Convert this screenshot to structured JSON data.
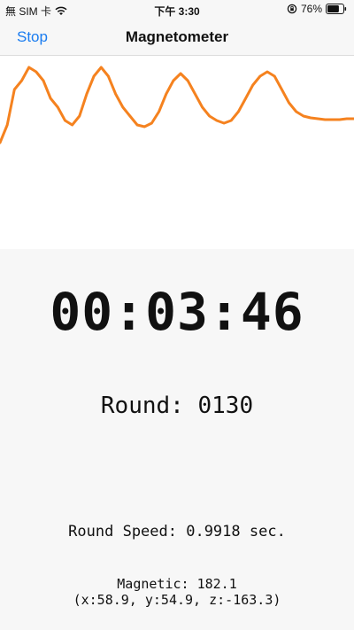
{
  "status_bar": {
    "carrier": "無 SIM 卡",
    "time": "下午 3:30",
    "battery_percent": "76%",
    "battery_level": 0.76
  },
  "nav": {
    "stop_label": "Stop",
    "title": "Magnetometer"
  },
  "chart_data": {
    "type": "line",
    "color": "#f5821f",
    "title": "",
    "xlabel": "",
    "ylabel": "",
    "grid": false,
    "ylim": [
      0,
      218
    ],
    "series": [
      {
        "values": [
          120,
          140,
          180,
          190,
          205,
          200,
          190,
          170,
          160,
          145,
          140,
          150,
          175,
          195,
          205,
          195,
          175,
          160,
          150,
          140,
          138,
          142,
          155,
          175,
          190,
          198,
          190,
          175,
          160,
          150,
          145,
          142,
          145,
          155,
          170,
          185,
          195,
          200,
          195,
          180,
          165,
          155,
          150,
          148,
          147,
          146,
          146,
          146,
          147,
          147
        ]
      }
    ]
  },
  "readouts": {
    "timer": "00:03:46",
    "round": "Round: 0130",
    "round_speed": "Round Speed: 0.9918 sec.",
    "magnetic_line1": "Magnetic: 182.1",
    "magnetic_line2": "(x:58.9, y:54.9, z:-163.3)"
  }
}
